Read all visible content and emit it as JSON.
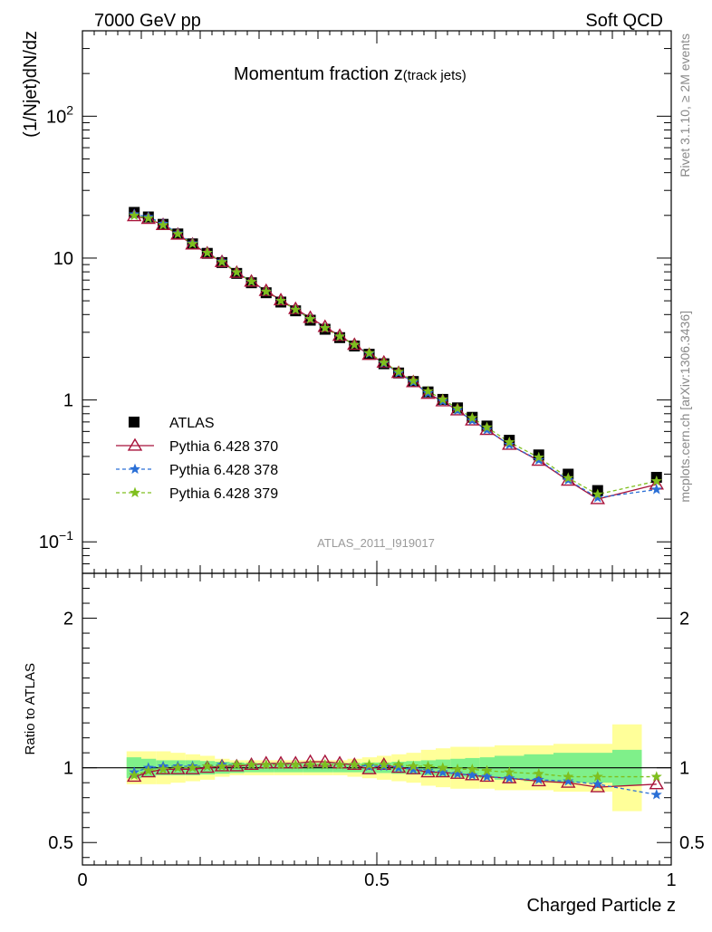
{
  "header": {
    "left": "7000 GeV pp",
    "right": "Soft QCD"
  },
  "side_labels": {
    "rivet": "Rivet 3.1.10, ≥ 2M events",
    "mcplots": "mcplots.cern.ch [arXiv:1306.3436]"
  },
  "chart_data": {
    "type": "scatter",
    "title_main": "Momentum fraction z",
    "title_sub": "(track jets)",
    "analysis_label": "ATLAS_2011_I919017",
    "ylabel_top": "(1/Njet)dN/dz",
    "ylabel_bottom": "Ratio to ATLAS",
    "xlabel": "Charged Particle z",
    "xlim": [
      0,
      1
    ],
    "ylim_top": [
      0.06,
      400
    ],
    "yscale_top": "log",
    "ylim_bottom": [
      0.35,
      2.3
    ],
    "x_ticks": [
      "0",
      "0.5",
      "1"
    ],
    "y_ticks_top": [
      "10^-1",
      "1",
      "10",
      "10^2"
    ],
    "y_ticks_bottom": [
      "0.5",
      "1",
      "2"
    ],
    "legend_position": "bottom-left",
    "legend": [
      "ATLAS",
      "Pythia 6.428 370",
      "Pythia 6.428 378",
      "Pythia 6.428 379"
    ],
    "x": [
      0.088,
      0.112,
      0.137,
      0.162,
      0.187,
      0.212,
      0.237,
      0.262,
      0.287,
      0.312,
      0.337,
      0.362,
      0.387,
      0.412,
      0.437,
      0.462,
      0.487,
      0.512,
      0.537,
      0.562,
      0.587,
      0.612,
      0.637,
      0.662,
      0.687,
      0.725,
      0.775,
      0.825,
      0.875,
      0.975
    ],
    "bin_edges": [
      0.075,
      0.1,
      0.125,
      0.15,
      0.175,
      0.2,
      0.225,
      0.25,
      0.275,
      0.3,
      0.325,
      0.35,
      0.375,
      0.4,
      0.425,
      0.45,
      0.475,
      0.5,
      0.525,
      0.55,
      0.575,
      0.6,
      0.625,
      0.65,
      0.675,
      0.7,
      0.75,
      0.8,
      0.85,
      0.9,
      0.95,
      1.0
    ],
    "data": [
      21,
      19.5,
      17.3,
      14.8,
      12.6,
      10.8,
      9.3,
      7.8,
      6.7,
      5.7,
      4.9,
      4.25,
      3.65,
      3.15,
      2.75,
      2.4,
      2.1,
      1.8,
      1.55,
      1.35,
      1.14,
      1.01,
      0.88,
      0.755,
      0.655,
      0.52,
      0.41,
      0.3,
      0.23,
      0.285
    ],
    "band_inner": [
      0.07,
      0.06,
      0.05,
      0.05,
      0.05,
      0.045,
      0.04,
      0.035,
      0.03,
      0.03,
      0.03,
      0.03,
      0.03,
      0.03,
      0.03,
      0.03,
      0.035,
      0.035,
      0.04,
      0.045,
      0.05,
      0.055,
      0.06,
      0.065,
      0.07,
      0.08,
      0.09,
      0.1,
      0.1,
      0.12
    ],
    "band_outer": [
      0.11,
      0.11,
      0.11,
      0.1,
      0.09,
      0.08,
      0.06,
      0.05,
      0.05,
      0.05,
      0.05,
      0.05,
      0.05,
      0.05,
      0.05,
      0.06,
      0.07,
      0.08,
      0.09,
      0.1,
      0.12,
      0.13,
      0.14,
      0.14,
      0.14,
      0.15,
      0.15,
      0.16,
      0.16,
      0.29
    ],
    "series": [
      {
        "name": "Pythia 6.428 370",
        "color": "#a8123a",
        "marker": "triangle",
        "dash": "solid",
        "ratio": [
          0.94,
          0.97,
          0.99,
          0.99,
          0.99,
          1.0,
          1.01,
          1.01,
          1.02,
          1.03,
          1.03,
          1.03,
          1.04,
          1.04,
          1.03,
          1.02,
          0.99,
          1.02,
          1.0,
          0.99,
          0.97,
          0.97,
          0.96,
          0.95,
          0.94,
          0.93,
          0.91,
          0.9,
          0.87,
          0.89
        ]
      },
      {
        "name": "Pythia 6.428 378",
        "color": "#2a6fd6",
        "marker": "star",
        "dash": "dashed",
        "ratio": [
          0.97,
          1.0,
          1.01,
          1.01,
          1.01,
          1.01,
          1.02,
          1.02,
          1.02,
          1.02,
          1.02,
          1.02,
          1.02,
          1.02,
          1.02,
          1.02,
          1.01,
          1.01,
          1.0,
          0.99,
          0.98,
          0.97,
          0.96,
          0.95,
          0.94,
          0.93,
          0.92,
          0.91,
          0.89,
          0.82
        ]
      },
      {
        "name": "Pythia 6.428 379",
        "color": "#7fbf1e",
        "marker": "star",
        "dash": "dashed",
        "ratio": [
          0.95,
          0.98,
          0.99,
          1.0,
          1.0,
          1.01,
          1.01,
          1.02,
          1.02,
          1.02,
          1.02,
          1.02,
          1.02,
          1.02,
          1.02,
          1.02,
          1.02,
          1.02,
          1.02,
          1.01,
          1.01,
          1.0,
          0.99,
          0.99,
          0.98,
          0.97,
          0.96,
          0.94,
          0.94,
          0.94
        ]
      }
    ],
    "data_color": "#000000",
    "band_inner_color": "#7ff08a",
    "band_outer_color": "#ffff99"
  }
}
